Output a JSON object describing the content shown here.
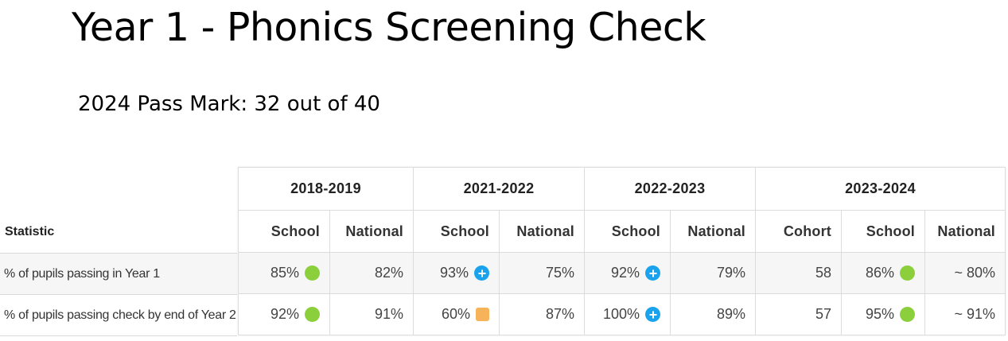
{
  "title": "Year 1 - Phonics Screening Check",
  "subtitle": "2024 Pass Mark: 32 out of 40",
  "colors": {
    "above_national_green": "#8ccf3c",
    "significantly_above_blue": "#1aa3ec",
    "below_amber": "#f6b35a"
  },
  "table": {
    "statistic_header": "Statistic",
    "years": [
      "2018-2019",
      "2021-2022",
      "2022-2023",
      "2023-2024"
    ],
    "subheaders": [
      "School",
      "National",
      "School",
      "National",
      "School",
      "National",
      "Cohort",
      "School",
      "National"
    ],
    "rows": [
      {
        "statistic": "% of pupils passing in Year 1",
        "cells": [
          {
            "value": "85%",
            "indicator": "green-circle-icon"
          },
          {
            "value": "82%"
          },
          {
            "value": "93%",
            "indicator": "blue-plus-icon"
          },
          {
            "value": "75%"
          },
          {
            "value": "92%",
            "indicator": "blue-plus-icon"
          },
          {
            "value": "79%"
          },
          {
            "value": "58"
          },
          {
            "value": "86%",
            "indicator": "green-circle-icon"
          },
          {
            "value": "~ 80%"
          }
        ]
      },
      {
        "statistic": "% of pupils passing check by end of Year 2",
        "cells": [
          {
            "value": "92%",
            "indicator": "green-circle-icon"
          },
          {
            "value": "91%"
          },
          {
            "value": "60%",
            "indicator": "amber-square-icon"
          },
          {
            "value": "87%"
          },
          {
            "value": "100%",
            "indicator": "blue-plus-icon"
          },
          {
            "value": "89%"
          },
          {
            "value": "57"
          },
          {
            "value": "95%",
            "indicator": "green-circle-icon"
          },
          {
            "value": "~ 91%"
          }
        ]
      }
    ]
  }
}
